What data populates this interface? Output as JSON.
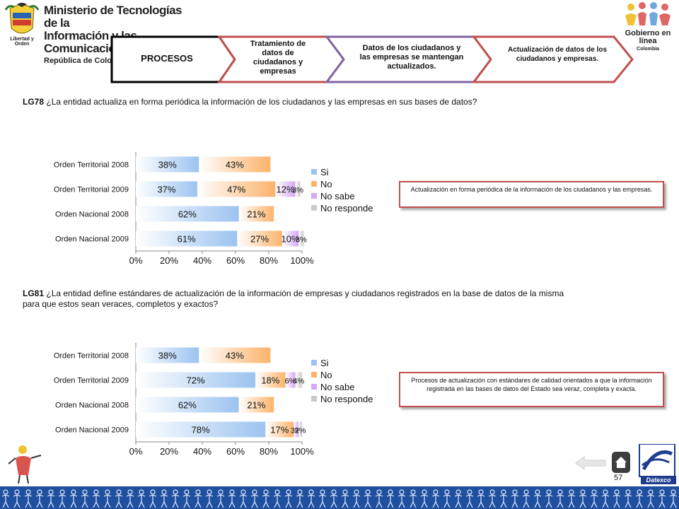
{
  "header": {
    "ministry_line1": "Ministerio de Tecnologías de la",
    "ministry_line2": "Información y las Comunicaciones",
    "ministry_line3": "República de Colombia",
    "coat_caption": "Libertad y Orden",
    "gobierno_line1": "Gobierno en línea",
    "gobierno_line2": "Colombia"
  },
  "process": {
    "steps": [
      {
        "label": "PROCESOS"
      },
      {
        "label": "Tratamiento de datos de ciudadanos y empresas"
      },
      {
        "label": "Datos de los ciudadanos y las empresas se mantengan actualizados."
      },
      {
        "label": "Actualización de datos de los ciudadanos y empresas."
      }
    ],
    "colors": [
      "#000000",
      "#c0504d",
      "#8064a2",
      "#c0504d"
    ]
  },
  "questions": {
    "q1": {
      "code": "LG78",
      "text": "¿La entidad actualiza en forma periódica la información de los ciudadanos y las empresas en sus bases de datos?"
    },
    "q2": {
      "code": "LG81",
      "text": "¿La entidad define estándares de actualización de la información de empresas y ciudadanos registrados en la base de datos de la misma para que estos sean veraces, completos y exactos?"
    }
  },
  "callouts": {
    "c1": "Actualización en forma periódica de la información de los ciudadanos y las empresas.",
    "c2": "Procesos de actualización con estándares de calidad orientados a que la información registrada en las bases de datos del Estado sea veraz, completa y exacta."
  },
  "chart_data": [
    {
      "type": "bar",
      "orientation": "horizontal",
      "stacked": true,
      "categories": [
        "Orden Territorial 2008",
        "Orden Territorial 2009",
        "Orden Nacional 2008",
        "Orden Nacional 2009"
      ],
      "series": [
        {
          "name": "Si",
          "values": [
            38,
            37,
            62,
            61
          ],
          "labels": [
            "38%",
            "37%",
            "62%",
            "61%"
          ]
        },
        {
          "name": "No",
          "values": [
            43,
            47,
            21,
            27
          ],
          "labels": [
            "43%",
            "47%",
            "21%",
            "27%"
          ]
        },
        {
          "name": "No sabe",
          "values": [
            0,
            12,
            0,
            10
          ],
          "labels": [
            "",
            "12%",
            "",
            "10%"
          ]
        },
        {
          "name": "No responde",
          "values": [
            0,
            3,
            0,
            3
          ],
          "labels": [
            "",
            "3%",
            "",
            "3%"
          ]
        }
      ],
      "xlim": [
        0,
        100
      ],
      "xticks": [
        "0%",
        "20%",
        "40%",
        "60%",
        "80%",
        "100%"
      ],
      "legend": "right",
      "colors": [
        "#9cc3f0",
        "#fbb36a",
        "#d7a8f5",
        "#c9c9c9"
      ]
    },
    {
      "type": "bar",
      "orientation": "horizontal",
      "stacked": true,
      "categories": [
        "Orden Territorial 2008",
        "Orden Territorial 2009",
        "Orden Nacional 2008",
        "Orden Nacional 2009"
      ],
      "series": [
        {
          "name": "Si",
          "values": [
            38,
            72,
            62,
            78
          ],
          "labels": [
            "38%",
            "72%",
            "62%",
            "78%"
          ]
        },
        {
          "name": "No",
          "values": [
            43,
            18,
            21,
            17
          ],
          "labels": [
            "43%",
            "18%",
            "21%",
            "17%"
          ]
        },
        {
          "name": "No sabe",
          "values": [
            0,
            6,
            0,
            3
          ],
          "labels": [
            "",
            "6%",
            "",
            "3%"
          ]
        },
        {
          "name": "No responde",
          "values": [
            0,
            4,
            0,
            2
          ],
          "labels": [
            "",
            "4%",
            "",
            "2%"
          ]
        }
      ],
      "xlim": [
        0,
        100
      ],
      "xticks": [
        "0%",
        "20%",
        "40%",
        "60%",
        "80%",
        "100%"
      ],
      "legend": "right",
      "colors": [
        "#9cc3f0",
        "#fbb36a",
        "#d7a8f5",
        "#c9c9c9"
      ]
    }
  ],
  "footer": {
    "page_number": "57",
    "datexco_label": "Datexco"
  }
}
